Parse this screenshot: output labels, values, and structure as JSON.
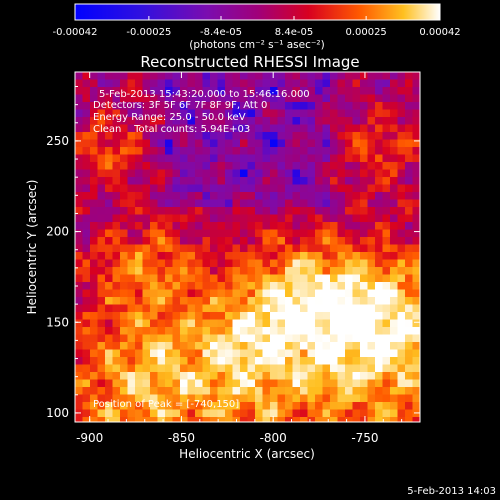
{
  "colorbar": {
    "tick_labels": [
      "-0.00042",
      "-0.00025",
      "-8.4e-05",
      "8.4e-05",
      "0.00025",
      "0.00042"
    ],
    "tick_values": [
      -0.00042,
      -0.00025,
      -8.4e-05,
      8.4e-05,
      0.00025,
      0.00042
    ],
    "range": [
      -0.00042,
      0.00042
    ],
    "units": "(photons cm⁻² s⁻¹ asec⁻²)",
    "colors": [
      "#0000ff",
      "#7a0cb0",
      "#a0007a",
      "#d80020",
      "#ff5a00",
      "#ffc020",
      "#ffffff"
    ]
  },
  "plot": {
    "title": "Reconstructed RHESSI Image",
    "xlabel": "Heliocentric X (arcsec)",
    "ylabel": "Heliocentric Y (arcsec)",
    "info_lines": [
      "5-Feb-2013 15:43:20.000 to 15:46:16.000",
      "Detectors: 3F 5F 6F 7F 8F 9F, Att 0",
      "Energy Range: 25.0 - 50.0 keV",
      "Clean    Total counts: 5.94E+03"
    ],
    "peak_label": "Position of Peak = [-740,150]"
  },
  "footer": {
    "timestamp": "5-Feb-2013 14:03"
  },
  "chart_data": {
    "type": "heatmap",
    "title": "Reconstructed RHESSI Image",
    "xlabel": "Heliocentric X (arcsec)",
    "ylabel": "Heliocentric Y (arcsec)",
    "xlim": [
      -908,
      -720
    ],
    "ylim": [
      95,
      288
    ],
    "x_ticks": [
      -900,
      -850,
      -800,
      -750
    ],
    "y_ticks": [
      100,
      150,
      200,
      250
    ],
    "peak": [
      -740,
      150
    ],
    "zlim": [
      -0.00042,
      0.00042
    ],
    "colormap": [
      "#0000ff",
      "#7a0cb0",
      "#a0007a",
      "#d80020",
      "#ff5a00",
      "#ffc020",
      "#ffffff"
    ],
    "grid": false
  }
}
